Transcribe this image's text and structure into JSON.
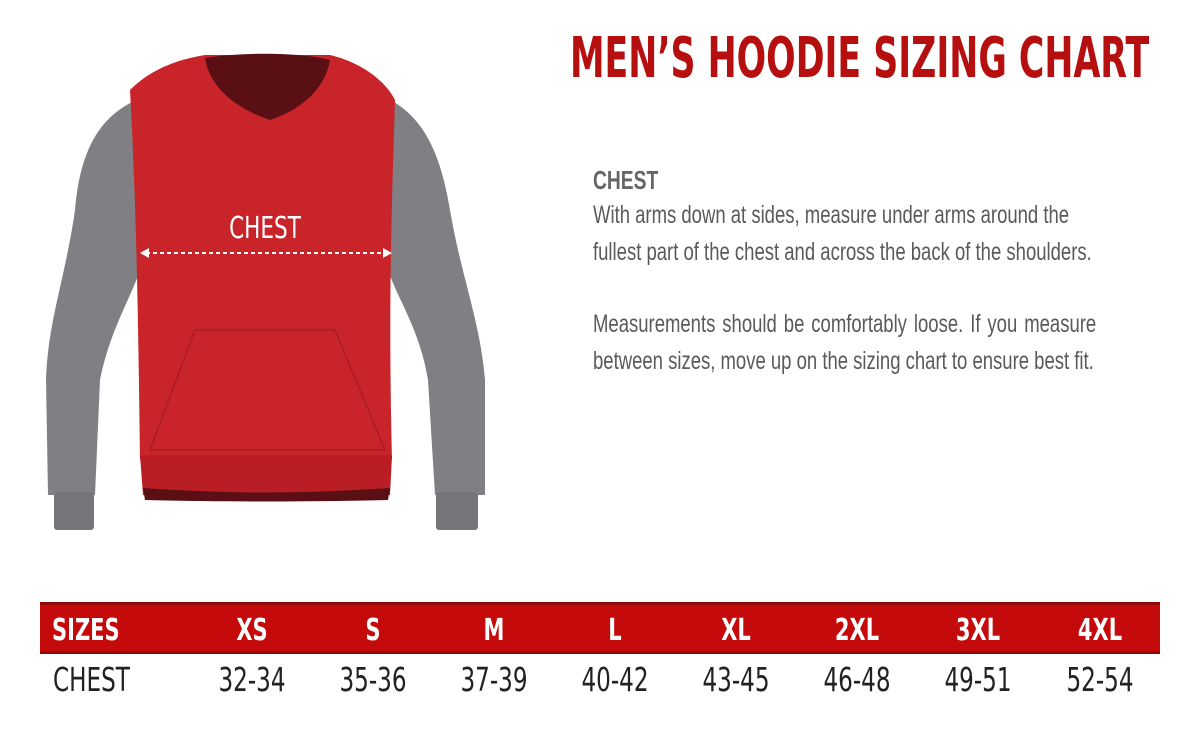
{
  "title": "MEN’S HOODIE SIZING CHART",
  "illustration": {
    "chest_label": "CHEST",
    "colors": {
      "body": "#c8242a",
      "sleeves": "#808084",
      "hood_inside": "#5a0f14"
    }
  },
  "description": {
    "heading": "CHEST",
    "paragraph1": "With arms down at sides, measure under arms around the fullest part of the chest and across the back of the shoulders.",
    "paragraph2": "Measurements should be comfortably loose. If you measure between sizes, move up on the sizing chart to ensure best fit."
  },
  "table": {
    "header_color": "#c40a0a",
    "header_label": "SIZES",
    "sizes": [
      "XS",
      "S",
      "M",
      "L",
      "XL",
      "2XL",
      "3XL",
      "4XL"
    ],
    "row_label": "CHEST",
    "chest": [
      "32-34",
      "35-36",
      "37-39",
      "40-42",
      "43-45",
      "46-48",
      "49-51",
      "52-54"
    ]
  }
}
